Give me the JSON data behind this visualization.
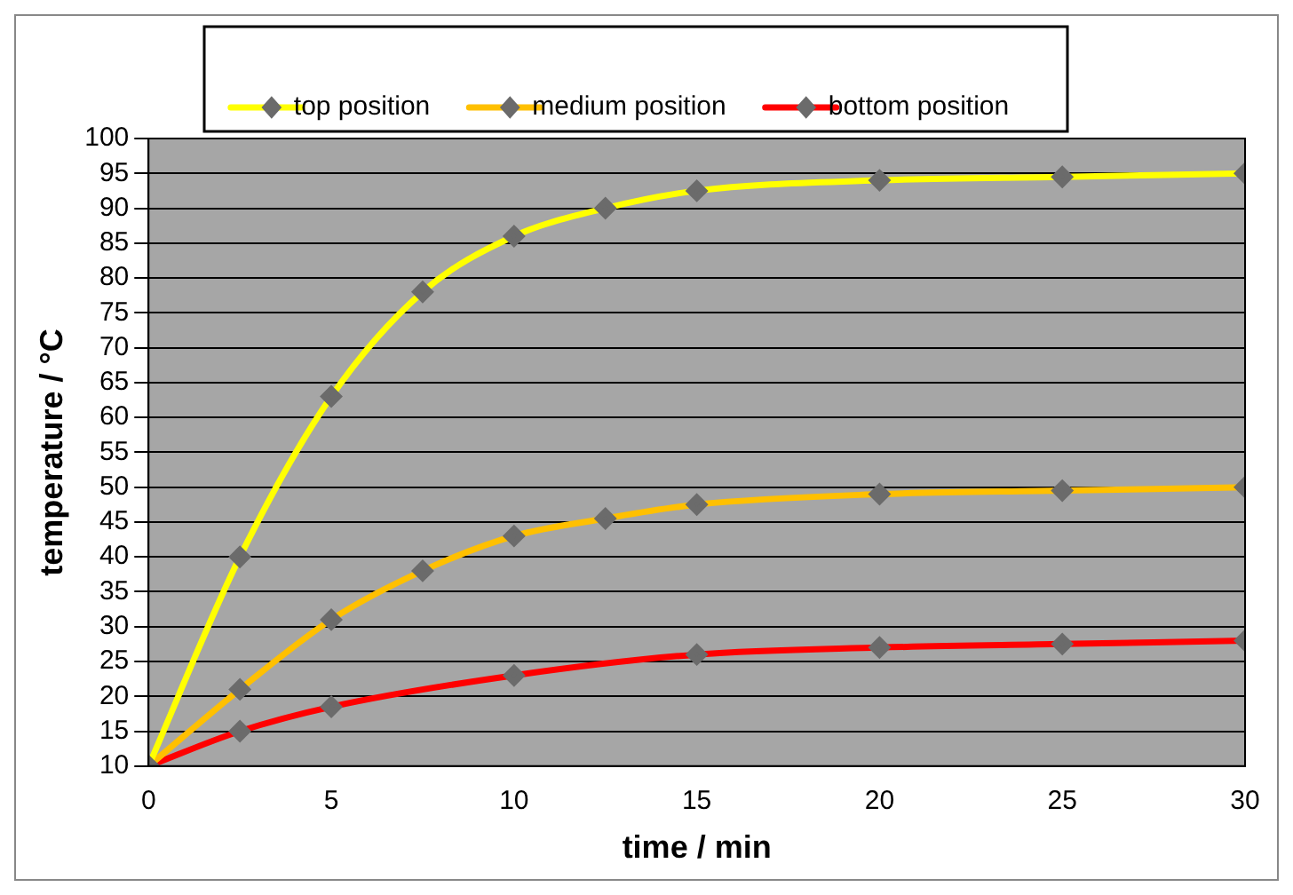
{
  "chart_data": {
    "type": "line",
    "xlabel": "time / min",
    "ylabel": "temperature / °C",
    "x": [
      0,
      2.5,
      5,
      7.5,
      10,
      12.5,
      15,
      20,
      25,
      30
    ],
    "series": [
      {
        "name": "top position",
        "color": "#ffff00",
        "values": [
          10,
          40,
          63,
          78,
          86,
          90,
          92.5,
          94,
          94.5,
          95
        ]
      },
      {
        "name": "medium position",
        "color": "#ffc000",
        "values": [
          10,
          21,
          31,
          38,
          43,
          45.5,
          47.5,
          49,
          49.5,
          50
        ]
      },
      {
        "name": "bottom position",
        "color": "#ff0000",
        "x": [
          0,
          2.5,
          5,
          10,
          15,
          20,
          25,
          30
        ],
        "values": [
          10,
          15,
          18.5,
          23,
          26,
          27,
          27.5,
          28
        ]
      }
    ],
    "xlim": [
      0,
      30
    ],
    "xticks": [
      0,
      5,
      10,
      15,
      20,
      25,
      30
    ],
    "ylim": [
      10,
      100
    ],
    "yticks": [
      10,
      15,
      20,
      25,
      30,
      35,
      40,
      45,
      50,
      55,
      60,
      65,
      70,
      75,
      80,
      85,
      90,
      95,
      100
    ],
    "grid": "y",
    "legend": "top",
    "marker": "diamond",
    "line_style": "solid"
  }
}
